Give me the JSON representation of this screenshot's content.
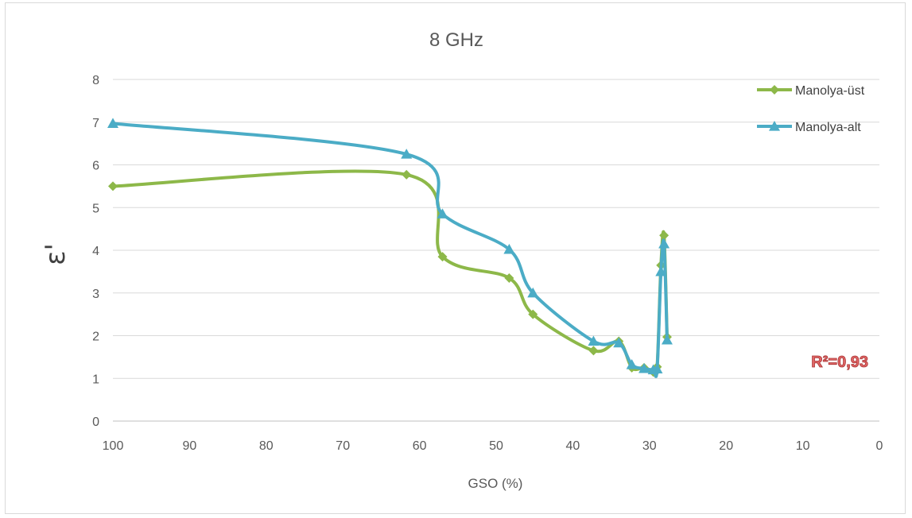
{
  "chart_data": {
    "type": "line",
    "title": "8 GHz",
    "xlabel": "GSO (%)",
    "ylabel": "ε'",
    "xlim": [
      100,
      0
    ],
    "ylim": [
      0,
      8
    ],
    "x_reversed": true,
    "grid": true,
    "legend_position": "top-right",
    "x_ticks": [
      "100",
      "90",
      "80",
      "70",
      "60",
      "50",
      "40",
      "30",
      "20",
      "10",
      "0"
    ],
    "y_ticks": [
      "0",
      "1",
      "2",
      "3",
      "4",
      "5",
      "6",
      "7",
      "8"
    ],
    "annotation": "R²=0,93",
    "series": [
      {
        "name": "Manolya-üst",
        "color": "#8db849",
        "marker": "diamond",
        "x": [
          100,
          61.7,
          57,
          48.3,
          45.2,
          37.3,
          34,
          32.3,
          30.7,
          29.5,
          29,
          28.5,
          28.1,
          27.7
        ],
        "y": [
          5.5,
          5.77,
          3.85,
          3.35,
          2.5,
          1.65,
          1.87,
          1.25,
          1.25,
          1.15,
          1.27,
          3.65,
          4.35,
          1.97
        ]
      },
      {
        "name": "Manolya-alt",
        "color": "#4bacc6",
        "marker": "triangle",
        "x": [
          100,
          61.7,
          57,
          48.3,
          45.2,
          37.3,
          34,
          32.3,
          30.7,
          29.5,
          29,
          28.5,
          28.1,
          27.7
        ],
        "y": [
          6.97,
          6.25,
          4.85,
          4.02,
          3.0,
          1.87,
          1.83,
          1.32,
          1.23,
          1.2,
          1.22,
          3.5,
          4.15,
          1.9
        ]
      }
    ]
  }
}
